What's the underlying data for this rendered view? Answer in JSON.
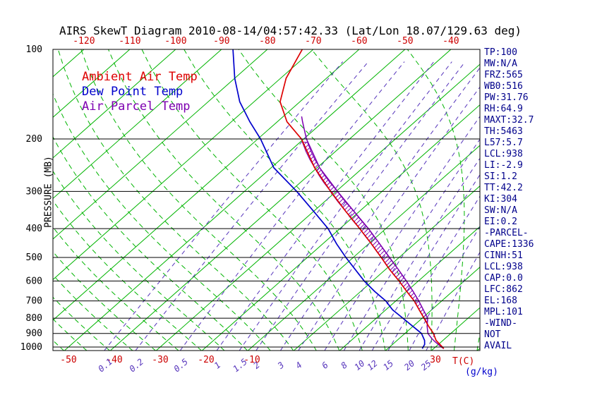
{
  "title": "AIRS SkewT Diagram 2010-08-14/04:57:42.33 (Lat/Lon 18.07/129.63 deg)",
  "legend": {
    "items": [
      {
        "label": "Ambient Air Temp",
        "color": "#dd0000"
      },
      {
        "label": "Dew Point Temp",
        "color": "#0000cc"
      },
      {
        "label": "Air Parcel Temp",
        "color": "#7d00b0"
      }
    ]
  },
  "axes": {
    "pressure_label": "PRESSURE (MB)",
    "temp_unit_label": "T(C)",
    "mixing_unit_label": "(g/kg)",
    "pressure_ticks": [
      100,
      200,
      300,
      400,
      500,
      600,
      700,
      800,
      900,
      1000
    ],
    "top_temp_ticks": [
      -120,
      -110,
      -100,
      -90,
      -80,
      -70,
      -60,
      -50,
      -40
    ],
    "bottom_temp_ticks": [
      -50,
      -40,
      -30,
      -20,
      -10,
      30
    ],
    "mixing_ratio_ticks": [
      0.1,
      0.2,
      0.5,
      1,
      1.5,
      2,
      3,
      4,
      6,
      8,
      10,
      12,
      15,
      20,
      25
    ]
  },
  "side_panel": {
    "items": [
      "TP:100",
      "MW:N/A",
      "FRZ:565",
      "WB0:516",
      "PW:31.76",
      "RH:64.9",
      "MAXT:32.7",
      "TH:5463",
      "L57:5.7",
      "LCL:938",
      "LI:-2.9",
      "SI:1.2",
      "TT:42.2",
      "KI:304",
      "SW:N/A",
      "EI:0.2",
      "-PARCEL-",
      "CAPE:1336",
      "CINH:51",
      "LCL:938",
      "CAP:0.0",
      "LFC:862",
      "EL:168",
      "MPL:101",
      "-WIND-",
      "NOT",
      "AVAIL"
    ]
  },
  "chart_data": {
    "type": "line",
    "diagram": "skew-t-log-p",
    "title": "AIRS SkewT Diagram 2010-08-14/04:57:42.33 (Lat/Lon 18.07/129.63 deg)",
    "pressure_axis_mb": [
      100,
      1013
    ],
    "isotherm_step_c": 10,
    "isotherm_range_c": [
      -160,
      40
    ],
    "cape_hatch_pressure_range": [
      205,
      820
    ],
    "series": [
      {
        "name": "Ambient Air Temp",
        "color": "#dd0000",
        "points_p_t": [
          [
            1012,
            32.2
          ],
          [
            1000,
            31.5
          ],
          [
            950,
            28.5
          ],
          [
            900,
            26.2
          ],
          [
            850,
            23.3
          ],
          [
            800,
            20.4
          ],
          [
            750,
            17.3
          ],
          [
            700,
            14.0
          ],
          [
            650,
            10.0
          ],
          [
            600,
            5.8
          ],
          [
            550,
            1.0
          ],
          [
            500,
            -3.9
          ],
          [
            450,
            -9.4
          ],
          [
            400,
            -15.7
          ],
          [
            350,
            -23.0
          ],
          [
            300,
            -31.2
          ],
          [
            250,
            -40.5
          ],
          [
            200,
            -50.5
          ],
          [
            175,
            -57.9
          ],
          [
            150,
            -64.3
          ],
          [
            125,
            -68.8
          ],
          [
            100,
            -72.4
          ]
        ]
      },
      {
        "name": "Dew Point Temp",
        "color": "#0000cc",
        "points_p_t": [
          [
            1012,
            27.5
          ],
          [
            980,
            27.0
          ],
          [
            950,
            26.0
          ],
          [
            900,
            23.6
          ],
          [
            850,
            19.8
          ],
          [
            800,
            15.8
          ],
          [
            750,
            11.5
          ],
          [
            700,
            7.8
          ],
          [
            650,
            3.0
          ],
          [
            600,
            -1.8
          ],
          [
            550,
            -6.5
          ],
          [
            500,
            -11.6
          ],
          [
            450,
            -17.0
          ],
          [
            400,
            -22.6
          ],
          [
            350,
            -30.0
          ],
          [
            300,
            -38.6
          ],
          [
            250,
            -49.4
          ],
          [
            200,
            -59.4
          ],
          [
            175,
            -66.0
          ],
          [
            150,
            -73.1
          ],
          [
            125,
            -80.0
          ],
          [
            100,
            -87.5
          ]
        ]
      },
      {
        "name": "Air Parcel Temp",
        "color": "#7d00b0",
        "points_p_t": [
          [
            1012,
            32.2
          ],
          [
            1000,
            31.3
          ],
          [
            960,
            28.6
          ],
          [
            938,
            27.2
          ],
          [
            900,
            25.0
          ],
          [
            850,
            23.0
          ],
          [
            800,
            21.2
          ],
          [
            750,
            18.2
          ],
          [
            700,
            15.0
          ],
          [
            650,
            11.4
          ],
          [
            600,
            7.4
          ],
          [
            550,
            2.9
          ],
          [
            500,
            -2.1
          ],
          [
            450,
            -7.6
          ],
          [
            400,
            -13.8
          ],
          [
            350,
            -21.2
          ],
          [
            300,
            -29.7
          ],
          [
            250,
            -39.4
          ],
          [
            200,
            -49.4
          ],
          [
            175,
            -54.5
          ],
          [
            168,
            -56.0
          ]
        ]
      }
    ],
    "grid": {
      "isobar_color": "#000000",
      "isotherm_color": "#00b400",
      "moist_adiabat_color": "#00b400",
      "mixing_ratio_color": "#5533bb",
      "tick_label_red": "#cc0000",
      "panel_text_color": "#00008b"
    }
  }
}
